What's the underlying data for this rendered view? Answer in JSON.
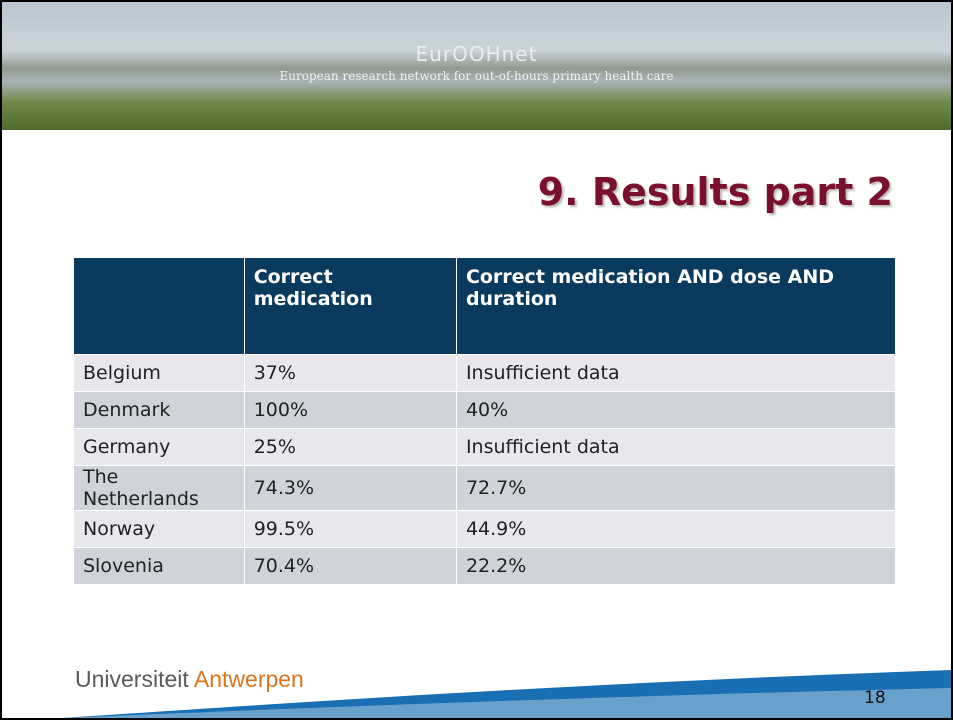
{
  "header": {
    "brand": "EurOOHnet",
    "subtitle": "European research network for out-of-hours primary health care"
  },
  "title": "9. Results part 2",
  "table": {
    "columns": [
      "Correct medication",
      "Correct medication AND dose AND duration"
    ],
    "rows": [
      [
        "Belgium",
        "37%",
        "Insufficient data"
      ],
      [
        "Denmark",
        "100%",
        "40%"
      ],
      [
        "Germany",
        "25%",
        "Insufficient data"
      ],
      [
        "The Netherlands",
        "74.3%",
        "72.7%"
      ],
      [
        "Norway",
        "99.5%",
        "44.9%"
      ],
      [
        "Slovenia",
        "70.4%",
        "22.2%"
      ]
    ]
  },
  "footer": {
    "logo_first": "Universiteit",
    "logo_second": "Antwerpen",
    "page": 18
  }
}
